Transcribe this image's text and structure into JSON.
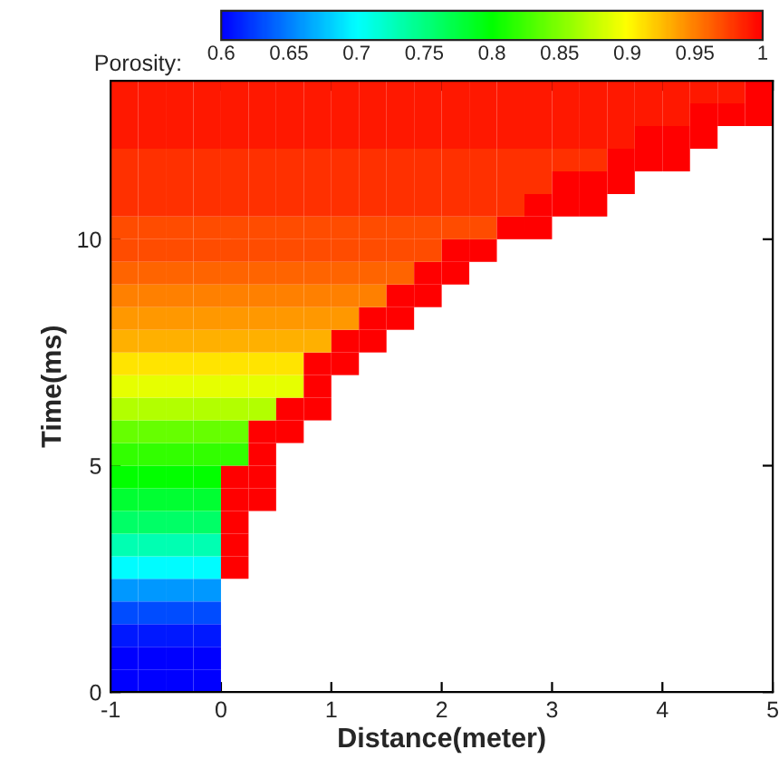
{
  "chart_data": {
    "type": "heatmap",
    "xlabel": "Distance(meter)",
    "ylabel": "Time(ms)",
    "clabel": "Porosity:",
    "x": [
      -0.875,
      -0.625,
      -0.375,
      -0.125,
      0.125,
      0.375,
      0.625,
      0.875,
      1.125,
      1.375,
      1.625,
      1.875,
      2.125,
      2.375,
      2.625,
      2.875,
      3.125,
      3.375,
      3.625,
      3.875,
      4.125,
      4.375,
      4.625,
      4.875
    ],
    "y": [
      13.25,
      12.75,
      12.25,
      11.75,
      11.25,
      10.75,
      10.25,
      9.75,
      9.25,
      8.75,
      8.25,
      7.75,
      7.25,
      6.75,
      6.25,
      5.75,
      5.25,
      4.75,
      4.25,
      3.75,
      3.25,
      2.75,
      2.25,
      1.75,
      1.25,
      0.75,
      0.25
    ],
    "cells": [
      [
        0.99,
        0.99,
        0.99,
        0.99,
        0.99,
        0.99,
        0.99,
        0.99,
        0.99,
        0.99,
        0.99,
        0.99,
        0.99,
        0.99,
        0.99,
        0.99,
        0.99,
        0.99,
        0.99,
        0.99,
        0.99,
        0.99,
        0.99,
        1
      ],
      [
        0.99,
        0.99,
        0.99,
        0.99,
        0.99,
        0.99,
        0.99,
        0.99,
        0.99,
        0.99,
        0.99,
        0.99,
        0.99,
        0.99,
        0.99,
        0.99,
        0.99,
        0.99,
        0.99,
        0.99,
        0.99,
        1,
        1,
        1
      ],
      [
        0.99,
        0.99,
        0.99,
        0.99,
        0.99,
        0.99,
        0.99,
        0.99,
        0.99,
        0.99,
        0.99,
        0.99,
        0.99,
        0.99,
        0.99,
        0.99,
        0.99,
        0.99,
        0.99,
        1,
        1,
        1,
        null,
        null
      ],
      [
        0.98,
        0.98,
        0.98,
        0.98,
        0.98,
        0.98,
        0.98,
        0.98,
        0.98,
        0.98,
        0.98,
        0.98,
        0.98,
        0.98,
        0.98,
        0.98,
        0.98,
        0.98,
        1,
        1,
        1,
        null,
        null,
        null
      ],
      [
        0.98,
        0.98,
        0.98,
        0.98,
        0.98,
        0.98,
        0.98,
        0.98,
        0.98,
        0.98,
        0.98,
        0.98,
        0.98,
        0.98,
        0.98,
        0.98,
        1,
        1,
        1,
        null,
        null,
        null,
        null,
        null
      ],
      [
        0.98,
        0.98,
        0.98,
        0.98,
        0.98,
        0.98,
        0.98,
        0.98,
        0.98,
        0.98,
        0.98,
        0.98,
        0.98,
        0.98,
        0.98,
        1,
        1,
        1,
        null,
        null,
        null,
        null,
        null,
        null
      ],
      [
        0.97,
        0.97,
        0.97,
        0.97,
        0.97,
        0.97,
        0.97,
        0.97,
        0.97,
        0.97,
        0.97,
        0.97,
        0.97,
        0.97,
        1,
        1,
        null,
        null,
        null,
        null,
        null,
        null,
        null,
        null
      ],
      [
        0.97,
        0.97,
        0.97,
        0.97,
        0.97,
        0.97,
        0.97,
        0.97,
        0.97,
        0.97,
        0.97,
        0.97,
        1,
        1,
        null,
        null,
        null,
        null,
        null,
        null,
        null,
        null,
        null,
        null
      ],
      [
        0.96,
        0.96,
        0.96,
        0.96,
        0.96,
        0.96,
        0.96,
        0.96,
        0.96,
        0.96,
        0.96,
        1,
        1,
        null,
        null,
        null,
        null,
        null,
        null,
        null,
        null,
        null,
        null,
        null
      ],
      [
        0.95,
        0.95,
        0.95,
        0.95,
        0.95,
        0.95,
        0.95,
        0.95,
        0.95,
        0.95,
        1,
        1,
        null,
        null,
        null,
        null,
        null,
        null,
        null,
        null,
        null,
        null,
        null,
        null
      ],
      [
        0.94,
        0.94,
        0.94,
        0.94,
        0.94,
        0.94,
        0.94,
        0.94,
        0.94,
        1,
        1,
        null,
        null,
        null,
        null,
        null,
        null,
        null,
        null,
        null,
        null,
        null,
        null,
        null
      ],
      [
        0.93,
        0.93,
        0.93,
        0.93,
        0.93,
        0.93,
        0.93,
        0.93,
        1,
        1,
        null,
        null,
        null,
        null,
        null,
        null,
        null,
        null,
        null,
        null,
        null,
        null,
        null,
        null
      ],
      [
        0.91,
        0.91,
        0.91,
        0.91,
        0.91,
        0.91,
        0.91,
        1,
        1,
        null,
        null,
        null,
        null,
        null,
        null,
        null,
        null,
        null,
        null,
        null,
        null,
        null,
        null,
        null
      ],
      [
        0.89,
        0.89,
        0.89,
        0.89,
        0.89,
        0.89,
        0.89,
        1,
        null,
        null,
        null,
        null,
        null,
        null,
        null,
        null,
        null,
        null,
        null,
        null,
        null,
        null,
        null,
        null
      ],
      [
        0.87,
        0.87,
        0.87,
        0.87,
        0.87,
        0.87,
        1,
        1,
        null,
        null,
        null,
        null,
        null,
        null,
        null,
        null,
        null,
        null,
        null,
        null,
        null,
        null,
        null,
        null
      ],
      [
        0.84,
        0.84,
        0.84,
        0.84,
        0.84,
        1,
        1,
        null,
        null,
        null,
        null,
        null,
        null,
        null,
        null,
        null,
        null,
        null,
        null,
        null,
        null,
        null,
        null,
        null
      ],
      [
        0.82,
        0.82,
        0.82,
        0.82,
        0.82,
        1,
        null,
        null,
        null,
        null,
        null,
        null,
        null,
        null,
        null,
        null,
        null,
        null,
        null,
        null,
        null,
        null,
        null,
        null
      ],
      [
        0.8,
        0.8,
        0.8,
        0.8,
        1,
        1,
        null,
        null,
        null,
        null,
        null,
        null,
        null,
        null,
        null,
        null,
        null,
        null,
        null,
        null,
        null,
        null,
        null,
        null
      ],
      [
        0.78,
        0.78,
        0.78,
        0.78,
        1,
        1,
        null,
        null,
        null,
        null,
        null,
        null,
        null,
        null,
        null,
        null,
        null,
        null,
        null,
        null,
        null,
        null,
        null,
        null
      ],
      [
        0.76,
        0.76,
        0.76,
        0.76,
        1,
        null,
        null,
        null,
        null,
        null,
        null,
        null,
        null,
        null,
        null,
        null,
        null,
        null,
        null,
        null,
        null,
        null,
        null,
        null
      ],
      [
        0.73,
        0.73,
        0.73,
        0.73,
        1,
        null,
        null,
        null,
        null,
        null,
        null,
        null,
        null,
        null,
        null,
        null,
        null,
        null,
        null,
        null,
        null,
        null,
        null,
        null
      ],
      [
        0.7,
        0.7,
        0.7,
        0.7,
        1,
        null,
        null,
        null,
        null,
        null,
        null,
        null,
        null,
        null,
        null,
        null,
        null,
        null,
        null,
        null,
        null,
        null,
        null,
        null
      ],
      [
        0.66,
        0.66,
        0.66,
        0.66,
        null,
        null,
        null,
        null,
        null,
        null,
        null,
        null,
        null,
        null,
        null,
        null,
        null,
        null,
        null,
        null,
        null,
        null,
        null,
        null
      ],
      [
        0.63,
        0.63,
        0.63,
        0.63,
        null,
        null,
        null,
        null,
        null,
        null,
        null,
        null,
        null,
        null,
        null,
        null,
        null,
        null,
        null,
        null,
        null,
        null,
        null,
        null
      ],
      [
        0.61,
        0.61,
        0.61,
        0.61,
        null,
        null,
        null,
        null,
        null,
        null,
        null,
        null,
        null,
        null,
        null,
        null,
        null,
        null,
        null,
        null,
        null,
        null,
        null,
        null
      ],
      [
        0.6,
        0.6,
        0.6,
        0.6,
        null,
        null,
        null,
        null,
        null,
        null,
        null,
        null,
        null,
        null,
        null,
        null,
        null,
        null,
        null,
        null,
        null,
        null,
        null,
        null
      ],
      [
        0.6,
        0.6,
        0.6,
        0.6,
        null,
        null,
        null,
        null,
        null,
        null,
        null,
        null,
        null,
        null,
        null,
        null,
        null,
        null,
        null,
        null,
        null,
        null,
        null,
        null
      ]
    ],
    "colors": [
      "#0000ff",
      "#00ffff",
      "#00ff00",
      "#ffff00",
      "#ff0000"
    ],
    "clim": [
      0.6,
      1
    ],
    "cticks": [
      0.6,
      0.65,
      0.7,
      0.75,
      0.8,
      0.85,
      0.9,
      0.95,
      1
    ],
    "xlim": [
      -1,
      5
    ],
    "xticks": [
      -1,
      0,
      1,
      2,
      3,
      4,
      5
    ],
    "ylim": [
      0,
      13.5
    ],
    "yticks": [
      0,
      5,
      10
    ],
    "grid": false
  }
}
